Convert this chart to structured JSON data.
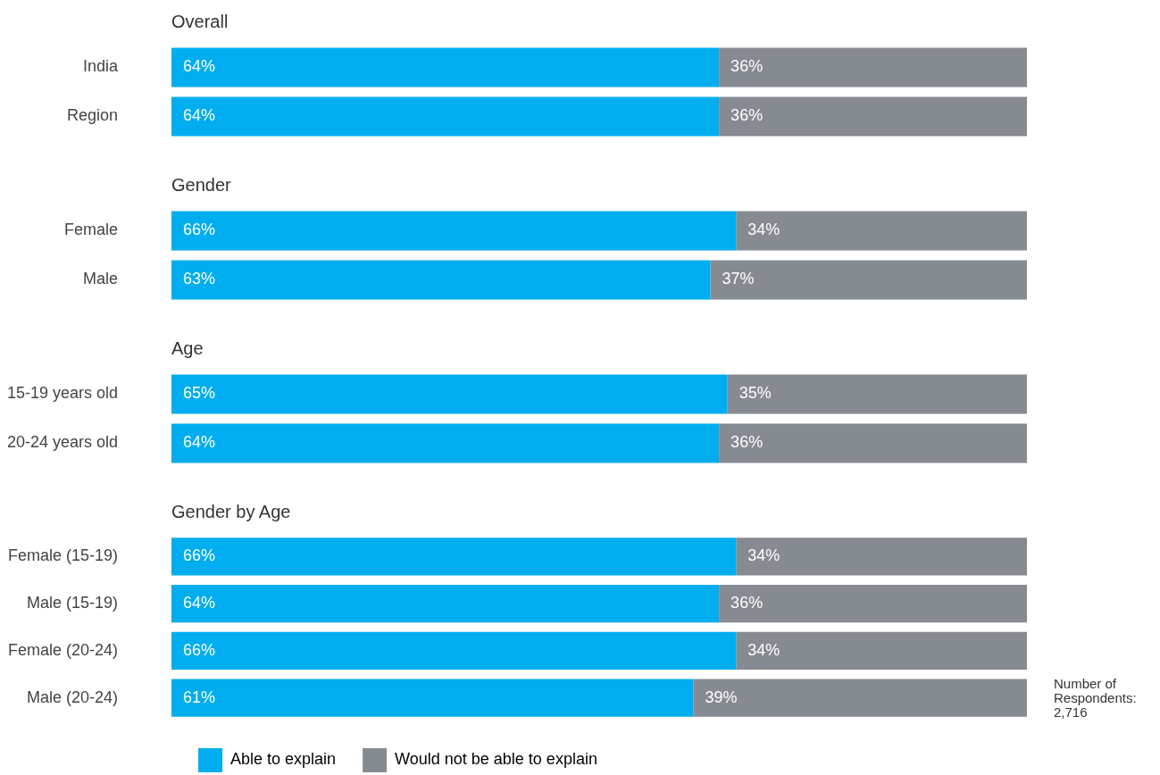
{
  "chart_data": [
    {
      "type": "bar",
      "title": "Overall",
      "orientation": "horizontal",
      "stacked": true,
      "categories": [
        "India",
        "Region"
      ],
      "xlim": [
        0,
        100
      ],
      "tick_labels": "y",
      "grid": false,
      "legend": false,
      "series": [
        {
          "color": "#00aeef",
          "values": [
            64,
            64
          ],
          "value_labels": [
            "64%",
            "64%"
          ]
        },
        {
          "color": "#868a91",
          "values": [
            36,
            36
          ],
          "value_labels": [
            "36%",
            "36%"
          ]
        }
      ]
    },
    {
      "type": "bar",
      "title": "Gender",
      "orientation": "horizontal",
      "stacked": true,
      "categories": [
        "Female",
        "Male"
      ],
      "xlim": [
        0,
        100
      ],
      "tick_labels": "y",
      "grid": false,
      "legend": false,
      "series": [
        {
          "color": "#00aeef",
          "values": [
            66,
            63
          ],
          "value_labels": [
            "66%",
            "63%"
          ]
        },
        {
          "color": "#868a91",
          "values": [
            34,
            37
          ],
          "value_labels": [
            "34%",
            "37%"
          ]
        }
      ]
    },
    {
      "type": "bar",
      "title": "Age",
      "orientation": "horizontal",
      "stacked": true,
      "categories": [
        "15-19 years old",
        "20-24 years old"
      ],
      "xlim": [
        0,
        100
      ],
      "tick_labels": "y",
      "grid": false,
      "legend": false,
      "series": [
        {
          "color": "#00aeef",
          "values": [
            65,
            64
          ],
          "value_labels": [
            "65%",
            "64%"
          ]
        },
        {
          "color": "#868a91",
          "values": [
            35,
            36
          ],
          "value_labels": [
            "35%",
            "36%"
          ]
        }
      ]
    },
    {
      "type": "bar",
      "title": "Gender by Age",
      "orientation": "horizontal",
      "stacked": true,
      "categories": [
        "Female (15-19)",
        "Male (15-19)",
        "Female (20-24)",
        "Male (20-24)"
      ],
      "xlim": [
        0,
        100
      ],
      "tick_labels": "y",
      "grid": false,
      "legend": "bottom",
      "annotations": [
        "Number of Respondents: 2,716"
      ],
      "series": [
        {
          "name": "Able to explain",
          "color": "#00aeef",
          "values": [
            66,
            64,
            66,
            61
          ],
          "value_labels": [
            "66%",
            "64%",
            "66%",
            "61%"
          ]
        },
        {
          "name": "Would not be able to explain",
          "color": "#868a91",
          "values": [
            34,
            36,
            34,
            39
          ],
          "value_labels": [
            "34%",
            "36%",
            "34%",
            "39%"
          ]
        }
      ]
    }
  ]
}
